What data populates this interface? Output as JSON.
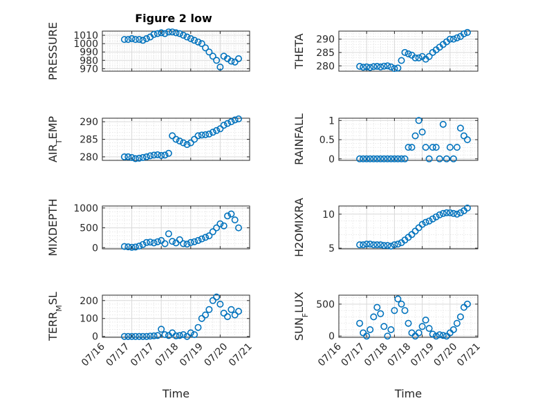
{
  "figure": {
    "title": "Figure 2 low",
    "marker_color": "#0072BD"
  },
  "chart_data": [
    {
      "type": "scatter",
      "name": "pressure",
      "ylabel": "PRESSURE",
      "ylim": [
        967,
        1015
      ],
      "yticks": [
        970,
        980,
        990,
        1000,
        1010
      ],
      "xlim": [
        "2023-07-16",
        "2023-07-21"
      ],
      "x": [
        "2023-07-16T18:00",
        "2023-07-16T21:00",
        "2023-07-17T00:00",
        "2023-07-17T03:00",
        "2023-07-17T06:00",
        "2023-07-17T09:00",
        "2023-07-17T12:00",
        "2023-07-17T15:00",
        "2023-07-17T18:00",
        "2023-07-17T21:00",
        "2023-07-18T00:00",
        "2023-07-18T03:00",
        "2023-07-18T06:00",
        "2023-07-18T09:00",
        "2023-07-18T12:00",
        "2023-07-18T15:00",
        "2023-07-18T18:00",
        "2023-07-18T21:00",
        "2023-07-19T00:00",
        "2023-07-19T03:00",
        "2023-07-19T06:00",
        "2023-07-19T09:00",
        "2023-07-19T12:00",
        "2023-07-19T15:00",
        "2023-07-19T18:00",
        "2023-07-19T21:00",
        "2023-07-20T00:00",
        "2023-07-20T03:00",
        "2023-07-20T06:00",
        "2023-07-20T09:00",
        "2023-07-20T12:00",
        "2023-07-20T15:00"
      ],
      "y": [
        1005,
        1005,
        1006,
        1005,
        1005,
        1004,
        1006,
        1008,
        1011,
        1012,
        1013,
        1012,
        1014,
        1014,
        1013,
        1012,
        1010,
        1008,
        1006,
        1004,
        1002,
        1000,
        995,
        990,
        985,
        980,
        972,
        985,
        982,
        979,
        978,
        982
      ]
    },
    {
      "type": "scatter",
      "name": "theta",
      "ylabel": "THETA",
      "ylim": [
        278,
        293
      ],
      "yticks": [
        280,
        285,
        290
      ],
      "xlim": [
        "2023-07-16",
        "2023-07-21"
      ],
      "x": [
        "2023-07-16T18:00",
        "2023-07-16T21:00",
        "2023-07-17T00:00",
        "2023-07-17T03:00",
        "2023-07-17T06:00",
        "2023-07-17T09:00",
        "2023-07-17T12:00",
        "2023-07-17T15:00",
        "2023-07-17T18:00",
        "2023-07-17T21:00",
        "2023-07-18T00:00",
        "2023-07-18T03:00",
        "2023-07-18T06:00",
        "2023-07-18T09:00",
        "2023-07-18T12:00",
        "2023-07-18T15:00",
        "2023-07-18T18:00",
        "2023-07-18T21:00",
        "2023-07-19T00:00",
        "2023-07-19T03:00",
        "2023-07-19T06:00",
        "2023-07-19T09:00",
        "2023-07-19T12:00",
        "2023-07-19T15:00",
        "2023-07-19T18:00",
        "2023-07-19T21:00",
        "2023-07-20T00:00",
        "2023-07-20T03:00",
        "2023-07-20T06:00",
        "2023-07-20T09:00",
        "2023-07-20T12:00",
        "2023-07-20T15:00"
      ],
      "y": [
        279.8,
        279.5,
        279.6,
        279.4,
        279.7,
        279.8,
        279.6,
        279.9,
        280.0,
        279.6,
        279.0,
        279.2,
        282,
        285,
        284.5,
        284,
        283,
        283,
        283.5,
        282.5,
        283.5,
        285,
        286,
        287,
        288,
        289,
        290,
        290,
        290.5,
        291,
        292,
        292.5
      ]
    },
    {
      "type": "scatter",
      "name": "air-temp",
      "ylabel": "AIR_TEMP",
      "ylim": [
        279,
        291
      ],
      "yticks": [
        280,
        285,
        290
      ],
      "xlim": [
        "2023-07-16",
        "2023-07-21"
      ],
      "x": [
        "2023-07-16T18:00",
        "2023-07-16T21:00",
        "2023-07-17T00:00",
        "2023-07-17T03:00",
        "2023-07-17T06:00",
        "2023-07-17T09:00",
        "2023-07-17T12:00",
        "2023-07-17T15:00",
        "2023-07-17T18:00",
        "2023-07-17T21:00",
        "2023-07-18T00:00",
        "2023-07-18T03:00",
        "2023-07-18T06:00",
        "2023-07-18T09:00",
        "2023-07-18T12:00",
        "2023-07-18T15:00",
        "2023-07-18T18:00",
        "2023-07-18T21:00",
        "2023-07-19T00:00",
        "2023-07-19T03:00",
        "2023-07-19T06:00",
        "2023-07-19T09:00",
        "2023-07-19T12:00",
        "2023-07-19T15:00",
        "2023-07-19T18:00",
        "2023-07-19T21:00",
        "2023-07-20T00:00",
        "2023-07-20T03:00",
        "2023-07-20T06:00",
        "2023-07-20T09:00",
        "2023-07-20T12:00",
        "2023-07-20T15:00"
      ],
      "y": [
        280,
        280,
        279.8,
        279.5,
        279.6,
        279.8,
        280,
        280.3,
        280.5,
        280.6,
        280.4,
        280.5,
        281,
        286,
        285,
        284.5,
        284,
        283.5,
        284,
        285,
        286,
        286.2,
        286.3,
        286.5,
        287,
        287.5,
        288,
        289,
        289.5,
        290,
        290.5,
        290.8
      ]
    },
    {
      "type": "scatter",
      "name": "rainfall",
      "ylabel": "RAINFALL",
      "ylim": [
        -0.04,
        1.06
      ],
      "yticks": [
        0,
        0.5,
        1
      ],
      "yticklabels": [
        "0",
        "0.5",
        "1"
      ],
      "xlim": [
        "2023-07-16",
        "2023-07-21"
      ],
      "x": [
        "2023-07-16T18:00",
        "2023-07-16T21:00",
        "2023-07-17T00:00",
        "2023-07-17T03:00",
        "2023-07-17T06:00",
        "2023-07-17T09:00",
        "2023-07-17T12:00",
        "2023-07-17T15:00",
        "2023-07-17T18:00",
        "2023-07-17T21:00",
        "2023-07-18T00:00",
        "2023-07-18T03:00",
        "2023-07-18T06:00",
        "2023-07-18T09:00",
        "2023-07-18T12:00",
        "2023-07-18T15:00",
        "2023-07-18T18:00",
        "2023-07-18T21:00",
        "2023-07-19T00:00",
        "2023-07-19T03:00",
        "2023-07-19T06:00",
        "2023-07-19T09:00",
        "2023-07-19T12:00",
        "2023-07-19T15:00",
        "2023-07-19T18:00",
        "2023-07-19T21:00",
        "2023-07-20T00:00",
        "2023-07-20T03:00",
        "2023-07-20T06:00",
        "2023-07-20T09:00",
        "2023-07-20T12:00",
        "2023-07-20T15:00"
      ],
      "y": [
        0,
        0,
        0,
        0,
        0,
        0,
        0,
        0,
        0,
        0,
        0,
        0,
        0,
        0,
        0.3,
        0.3,
        0.6,
        1.0,
        0.7,
        0.3,
        0,
        0.3,
        0.3,
        0,
        0.9,
        0,
        0.3,
        0,
        0.3,
        0.8,
        0.6,
        0.5
      ]
    },
    {
      "type": "scatter",
      "name": "mixdepth",
      "ylabel": "MIXDEPTH",
      "ylim": [
        -30,
        1050
      ],
      "yticks": [
        0,
        500,
        1000
      ],
      "xlim": [
        "2023-07-16",
        "2023-07-21"
      ],
      "x": [
        "2023-07-16T18:00",
        "2023-07-16T21:00",
        "2023-07-17T00:00",
        "2023-07-17T03:00",
        "2023-07-17T06:00",
        "2023-07-17T09:00",
        "2023-07-17T12:00",
        "2023-07-17T15:00",
        "2023-07-17T18:00",
        "2023-07-17T21:00",
        "2023-07-18T00:00",
        "2023-07-18T03:00",
        "2023-07-18T06:00",
        "2023-07-18T09:00",
        "2023-07-18T12:00",
        "2023-07-18T15:00",
        "2023-07-18T18:00",
        "2023-07-18T21:00",
        "2023-07-19T00:00",
        "2023-07-19T03:00",
        "2023-07-19T06:00",
        "2023-07-19T09:00",
        "2023-07-19T12:00",
        "2023-07-19T15:00",
        "2023-07-19T18:00",
        "2023-07-19T21:00",
        "2023-07-20T00:00",
        "2023-07-20T03:00",
        "2023-07-20T06:00",
        "2023-07-20T09:00",
        "2023-07-20T12:00",
        "2023-07-20T15:00"
      ],
      "y": [
        30,
        20,
        10,
        15,
        40,
        80,
        130,
        140,
        120,
        150,
        180,
        100,
        350,
        160,
        120,
        200,
        100,
        90,
        130,
        150,
        180,
        220,
        260,
        300,
        400,
        500,
        600,
        550,
        800,
        850,
        700,
        500
      ]
    },
    {
      "type": "scatter",
      "name": "h2omixra",
      "ylabel": "H2OMIXRA",
      "ylim": [
        4.9,
        11.2
      ],
      "yticks": [
        5,
        10
      ],
      "xlim": [
        "2023-07-16",
        "2023-07-21"
      ],
      "x": [
        "2023-07-16T18:00",
        "2023-07-16T21:00",
        "2023-07-17T00:00",
        "2023-07-17T03:00",
        "2023-07-17T06:00",
        "2023-07-17T09:00",
        "2023-07-17T12:00",
        "2023-07-17T15:00",
        "2023-07-17T18:00",
        "2023-07-17T21:00",
        "2023-07-18T00:00",
        "2023-07-18T03:00",
        "2023-07-18T06:00",
        "2023-07-18T09:00",
        "2023-07-18T12:00",
        "2023-07-18T15:00",
        "2023-07-18T18:00",
        "2023-07-18T21:00",
        "2023-07-19T00:00",
        "2023-07-19T03:00",
        "2023-07-19T06:00",
        "2023-07-19T09:00",
        "2023-07-19T12:00",
        "2023-07-19T15:00",
        "2023-07-19T18:00",
        "2023-07-19T21:00",
        "2023-07-20T00:00",
        "2023-07-20T03:00",
        "2023-07-20T06:00",
        "2023-07-20T09:00",
        "2023-07-20T12:00",
        "2023-07-20T15:00"
      ],
      "y": [
        5.5,
        5.5,
        5.6,
        5.6,
        5.5,
        5.5,
        5.5,
        5.4,
        5.4,
        5.3,
        5.5,
        5.6,
        5.8,
        6.2,
        6.6,
        7.0,
        7.5,
        8.0,
        8.5,
        8.8,
        9.0,
        9.3,
        9.6,
        9.9,
        10.1,
        10.2,
        10.2,
        10.1,
        10.0,
        10.2,
        10.5,
        10.9
      ]
    },
    {
      "type": "scatter",
      "name": "terr-msl",
      "ylabel": "TERR_MSL",
      "ylim": [
        -5,
        230
      ],
      "yticks": [
        0,
        100,
        200
      ],
      "xlim": [
        "2023-07-16",
        "2023-07-21"
      ],
      "xticks": [
        "07/16",
        "07/17",
        "07/17",
        "07/18",
        "07/19",
        "07/20",
        "07/21"
      ],
      "xlabel": "Time",
      "x": [
        "2023-07-16T18:00",
        "2023-07-16T21:00",
        "2023-07-17T00:00",
        "2023-07-17T03:00",
        "2023-07-17T06:00",
        "2023-07-17T09:00",
        "2023-07-17T12:00",
        "2023-07-17T15:00",
        "2023-07-17T18:00",
        "2023-07-17T21:00",
        "2023-07-18T00:00",
        "2023-07-18T03:00",
        "2023-07-18T06:00",
        "2023-07-18T09:00",
        "2023-07-18T12:00",
        "2023-07-18T15:00",
        "2023-07-18T18:00",
        "2023-07-18T21:00",
        "2023-07-19T00:00",
        "2023-07-19T03:00",
        "2023-07-19T06:00",
        "2023-07-19T09:00",
        "2023-07-19T12:00",
        "2023-07-19T15:00",
        "2023-07-19T18:00",
        "2023-07-19T21:00",
        "2023-07-20T00:00",
        "2023-07-20T03:00",
        "2023-07-20T06:00",
        "2023-07-20T09:00",
        "2023-07-20T12:00",
        "2023-07-20T15:00"
      ],
      "y": [
        0,
        0,
        0,
        0,
        0,
        0,
        0,
        2,
        3,
        5,
        40,
        10,
        5,
        20,
        3,
        5,
        10,
        0,
        20,
        10,
        50,
        100,
        120,
        150,
        200,
        220,
        180,
        130,
        110,
        150,
        120,
        140
      ]
    },
    {
      "type": "scatter",
      "name": "sun-flux",
      "ylabel": "SUN_FLUX",
      "ylim": [
        -20,
        640
      ],
      "yticks": [
        0,
        500
      ],
      "xlim": [
        "2023-07-16",
        "2023-07-21"
      ],
      "xticks": [
        "07/16",
        "07/17",
        "07/18",
        "07/18",
        "07/19",
        "07/20",
        "07/21"
      ],
      "xlabel": "Time",
      "x": [
        "2023-07-16T18:00",
        "2023-07-16T21:00",
        "2023-07-17T00:00",
        "2023-07-17T03:00",
        "2023-07-17T06:00",
        "2023-07-17T09:00",
        "2023-07-17T12:00",
        "2023-07-17T15:00",
        "2023-07-17T18:00",
        "2023-07-17T21:00",
        "2023-07-18T00:00",
        "2023-07-18T03:00",
        "2023-07-18T06:00",
        "2023-07-18T09:00",
        "2023-07-18T12:00",
        "2023-07-18T15:00",
        "2023-07-18T18:00",
        "2023-07-18T21:00",
        "2023-07-19T00:00",
        "2023-07-19T03:00",
        "2023-07-19T06:00",
        "2023-07-19T09:00",
        "2023-07-19T12:00",
        "2023-07-19T15:00",
        "2023-07-19T18:00",
        "2023-07-19T21:00",
        "2023-07-20T00:00",
        "2023-07-20T03:00",
        "2023-07-20T06:00",
        "2023-07-20T09:00",
        "2023-07-20T12:00",
        "2023-07-20T15:00"
      ],
      "y": [
        200,
        50,
        0,
        100,
        300,
        450,
        350,
        150,
        0,
        100,
        400,
        580,
        500,
        400,
        200,
        50,
        0,
        50,
        150,
        250,
        120,
        30,
        0,
        20,
        10,
        0,
        50,
        100,
        200,
        300,
        450,
        500
      ]
    }
  ]
}
